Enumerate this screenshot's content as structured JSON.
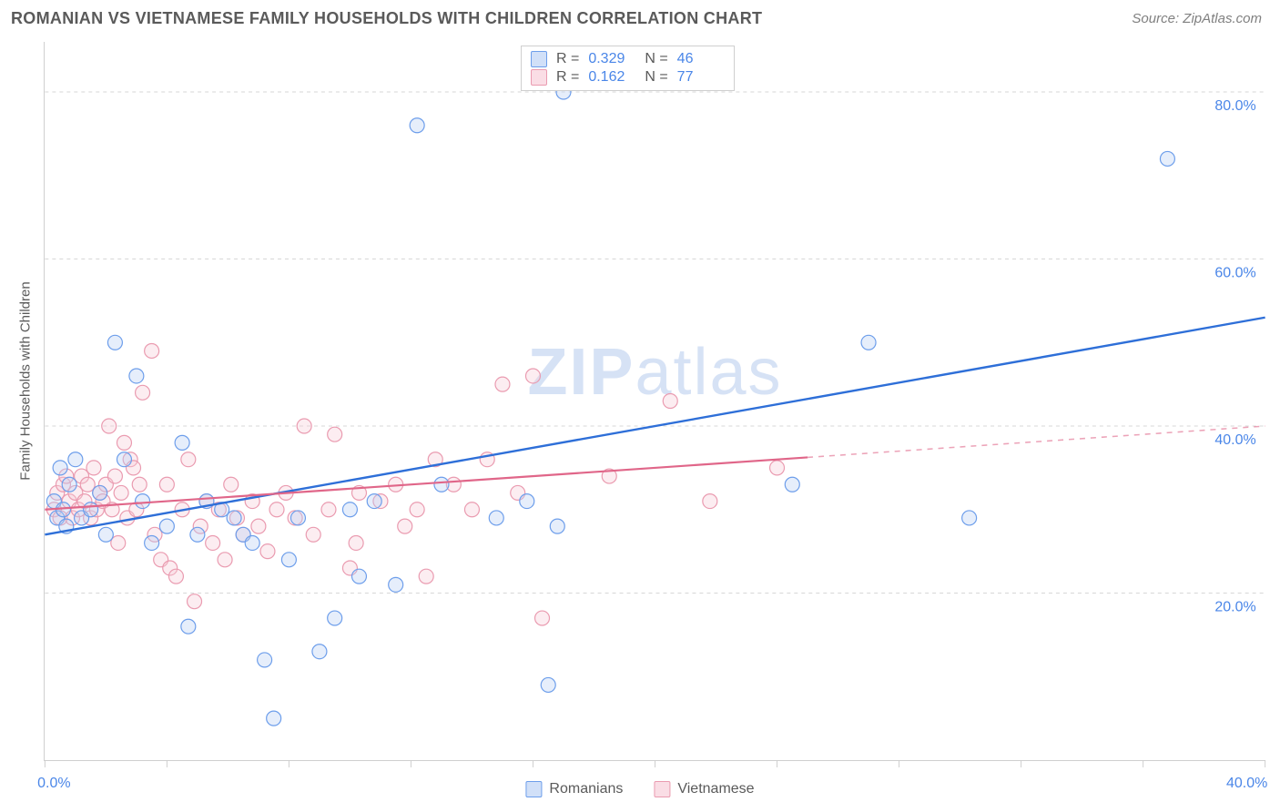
{
  "header": {
    "title": "ROMANIAN VS VIETNAMESE FAMILY HOUSEHOLDS WITH CHILDREN CORRELATION CHART",
    "source_prefix": "Source: ",
    "source_name": "ZipAtlas.com"
  },
  "chart": {
    "type": "scatter",
    "watermark_bold": "ZIP",
    "watermark_rest": "atlas",
    "y_axis_label": "Family Households with Children",
    "x_domain": [
      0,
      40
    ],
    "y_domain": [
      0,
      86
    ],
    "x_ticks_major": [
      0,
      40
    ],
    "x_ticks_minor": [
      4,
      8,
      12,
      16,
      20,
      24,
      28,
      32,
      36
    ],
    "x_tick_labels": {
      "0": "0.0%",
      "40": "40.0%"
    },
    "y_ticks": [
      20,
      40,
      60,
      80
    ],
    "y_tick_labels": {
      "20": "20.0%",
      "40": "40.0%",
      "60": "60.0%",
      "80": "80.0%"
    },
    "grid_color": "#d7d7d7",
    "background_color": "#ffffff",
    "axis_label_color": "#4a86e8",
    "marker_radius": 8,
    "marker_stroke_width": 1.2,
    "marker_fill_opacity": 0.35,
    "series": [
      {
        "id": "romanians",
        "label": "Romanians",
        "color_stroke": "#6d9eeb",
        "color_fill": "#b7cff3",
        "swatch_border": "#6d9eeb",
        "swatch_fill": "#d1e0f8",
        "R": "0.329",
        "N": "46",
        "trend": {
          "x1": 0,
          "y1": 27,
          "x2": 40,
          "y2": 53,
          "solid_until_x": 40,
          "color": "#2e6fd8",
          "width": 2.4
        },
        "points": [
          [
            0.3,
            31
          ],
          [
            0.4,
            29
          ],
          [
            0.5,
            35
          ],
          [
            0.6,
            30
          ],
          [
            0.7,
            28
          ],
          [
            0.8,
            33
          ],
          [
            1.0,
            36
          ],
          [
            1.2,
            29
          ],
          [
            1.5,
            30
          ],
          [
            1.8,
            32
          ],
          [
            2.0,
            27
          ],
          [
            2.3,
            50
          ],
          [
            2.6,
            36
          ],
          [
            3.0,
            46
          ],
          [
            3.2,
            31
          ],
          [
            3.5,
            26
          ],
          [
            4.0,
            28
          ],
          [
            4.5,
            38
          ],
          [
            4.7,
            16
          ],
          [
            5.0,
            27
          ],
          [
            5.3,
            31
          ],
          [
            5.8,
            30
          ],
          [
            6.2,
            29
          ],
          [
            6.5,
            27
          ],
          [
            6.8,
            26
          ],
          [
            7.2,
            12
          ],
          [
            7.5,
            5
          ],
          [
            8.0,
            24
          ],
          [
            8.3,
            29
          ],
          [
            9.0,
            13
          ],
          [
            9.5,
            17
          ],
          [
            10.0,
            30
          ],
          [
            10.3,
            22
          ],
          [
            10.8,
            31
          ],
          [
            11.5,
            21
          ],
          [
            12.2,
            76
          ],
          [
            13.0,
            33
          ],
          [
            14.8,
            29
          ],
          [
            15.8,
            31
          ],
          [
            16.5,
            9
          ],
          [
            16.8,
            28
          ],
          [
            17.0,
            80
          ],
          [
            24.5,
            33
          ],
          [
            27.0,
            50
          ],
          [
            30.3,
            29
          ],
          [
            36.8,
            72
          ]
        ]
      },
      {
        "id": "vietnamese",
        "label": "Vietnamese",
        "color_stroke": "#ea9bb0",
        "color_fill": "#f6ccd8",
        "swatch_border": "#ea9bb0",
        "swatch_fill": "#fadde5",
        "R": "0.162",
        "N": "77",
        "trend": {
          "x1": 0,
          "y1": 30,
          "x2": 40,
          "y2": 40,
          "solid_until_x": 25,
          "color": "#e06689",
          "width": 2.2
        },
        "points": [
          [
            0.3,
            30
          ],
          [
            0.4,
            32
          ],
          [
            0.5,
            29
          ],
          [
            0.6,
            33
          ],
          [
            0.7,
            34
          ],
          [
            0.8,
            31
          ],
          [
            0.9,
            29
          ],
          [
            1.0,
            32
          ],
          [
            1.1,
            30
          ],
          [
            1.2,
            34
          ],
          [
            1.3,
            31
          ],
          [
            1.4,
            33
          ],
          [
            1.5,
            29
          ],
          [
            1.6,
            35
          ],
          [
            1.7,
            30
          ],
          [
            1.8,
            32
          ],
          [
            1.9,
            31
          ],
          [
            2.0,
            33
          ],
          [
            2.1,
            40
          ],
          [
            2.2,
            30
          ],
          [
            2.3,
            34
          ],
          [
            2.4,
            26
          ],
          [
            2.5,
            32
          ],
          [
            2.6,
            38
          ],
          [
            2.7,
            29
          ],
          [
            2.8,
            36
          ],
          [
            2.9,
            35
          ],
          [
            3.0,
            30
          ],
          [
            3.1,
            33
          ],
          [
            3.2,
            44
          ],
          [
            3.5,
            49
          ],
          [
            3.6,
            27
          ],
          [
            3.8,
            24
          ],
          [
            4.0,
            33
          ],
          [
            4.1,
            23
          ],
          [
            4.3,
            22
          ],
          [
            4.5,
            30
          ],
          [
            4.7,
            36
          ],
          [
            4.9,
            19
          ],
          [
            5.1,
            28
          ],
          [
            5.3,
            31
          ],
          [
            5.5,
            26
          ],
          [
            5.7,
            30
          ],
          [
            5.9,
            24
          ],
          [
            6.1,
            33
          ],
          [
            6.3,
            29
          ],
          [
            6.5,
            27
          ],
          [
            6.8,
            31
          ],
          [
            7.0,
            28
          ],
          [
            7.3,
            25
          ],
          [
            7.6,
            30
          ],
          [
            7.9,
            32
          ],
          [
            8.2,
            29
          ],
          [
            8.5,
            40
          ],
          [
            8.8,
            27
          ],
          [
            9.3,
            30
          ],
          [
            9.5,
            39
          ],
          [
            10.0,
            23
          ],
          [
            10.2,
            26
          ],
          [
            10.3,
            32
          ],
          [
            11.0,
            31
          ],
          [
            11.5,
            33
          ],
          [
            11.8,
            28
          ],
          [
            12.2,
            30
          ],
          [
            12.5,
            22
          ],
          [
            12.8,
            36
          ],
          [
            13.4,
            33
          ],
          [
            14.0,
            30
          ],
          [
            14.5,
            36
          ],
          [
            15.0,
            45
          ],
          [
            15.5,
            32
          ],
          [
            16.0,
            46
          ],
          [
            16.3,
            17
          ],
          [
            18.5,
            34
          ],
          [
            20.5,
            43
          ],
          [
            21.8,
            31
          ],
          [
            24.0,
            35
          ]
        ]
      }
    ]
  },
  "stats_box": {
    "r_label": "R =",
    "n_label": "N ="
  },
  "legend": {
    "items": [
      "Romanians",
      "Vietnamese"
    ]
  }
}
